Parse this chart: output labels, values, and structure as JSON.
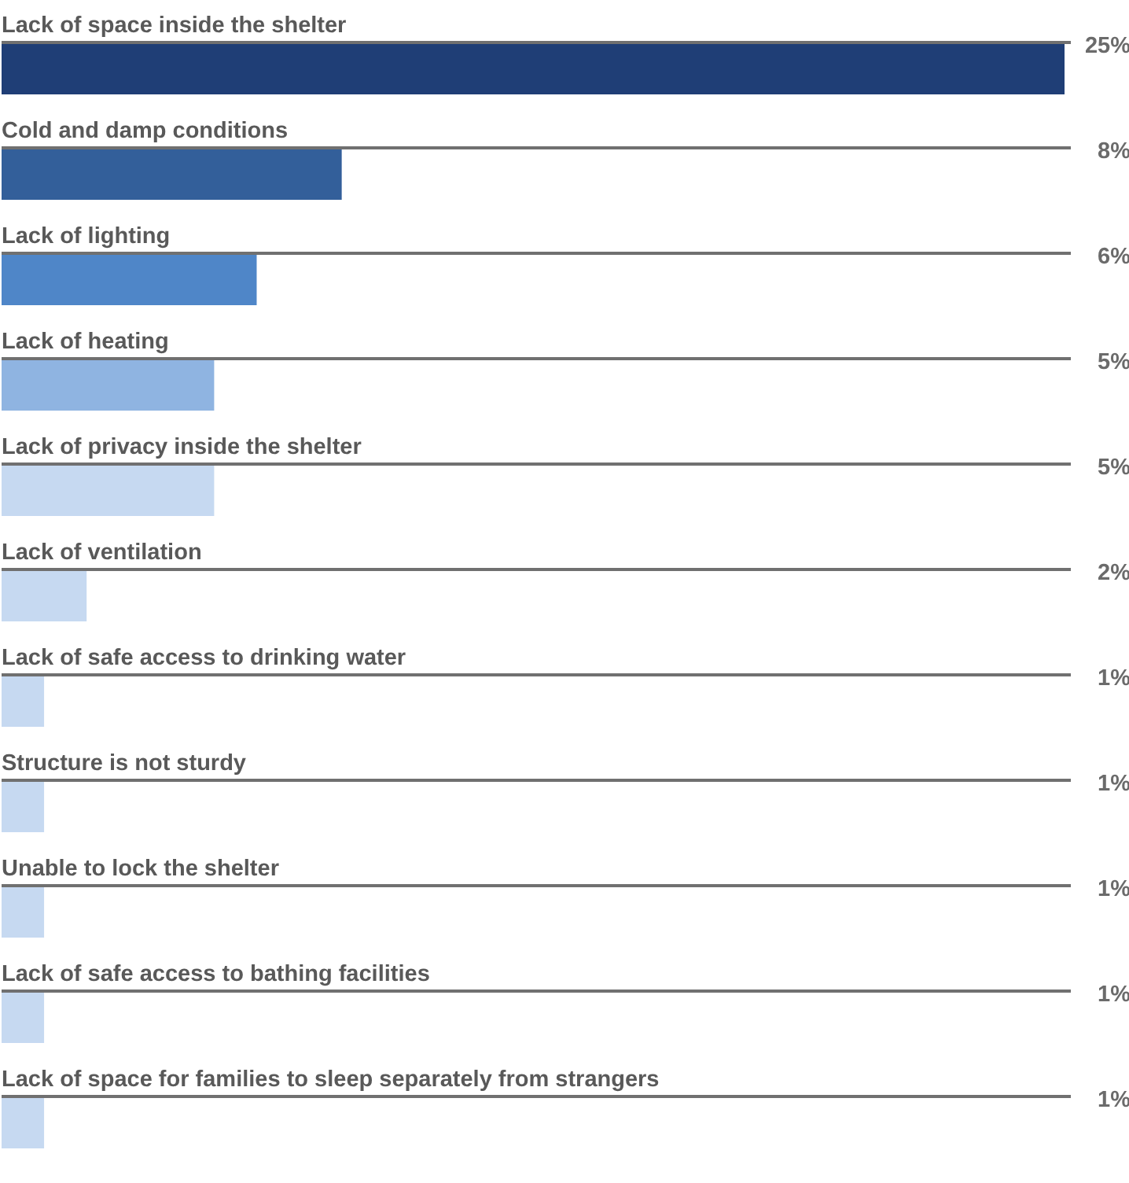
{
  "chart_data": {
    "type": "bar",
    "orientation": "horizontal",
    "categories": [
      "Lack of space inside the shelter",
      "Cold and damp conditions",
      "Lack of lighting",
      "Lack of heating",
      "Lack of privacy inside the shelter",
      "Lack of ventilation",
      "Lack of safe access to drinking water",
      "Structure is not sturdy",
      "Unable to lock the shelter",
      "Lack of safe access to bathing facilities",
      "Lack of space for families to sleep separately from strangers"
    ],
    "values": [
      25,
      8,
      6,
      5,
      5,
      2,
      1,
      1,
      1,
      1,
      1
    ],
    "value_labels": [
      "25%",
      "8%",
      "6%",
      "5%",
      "5%",
      "2%",
      "1%",
      "1%",
      "1%",
      "1%",
      "1%"
    ],
    "colors": [
      "#1f3e76",
      "#335f9a",
      "#4f86c8",
      "#8fb4e1",
      "#c6d9f1",
      "#c6d9f1",
      "#c6d9f1",
      "#c6d9f1",
      "#c6d9f1",
      "#c6d9f1",
      "#c6d9f1"
    ]
  }
}
